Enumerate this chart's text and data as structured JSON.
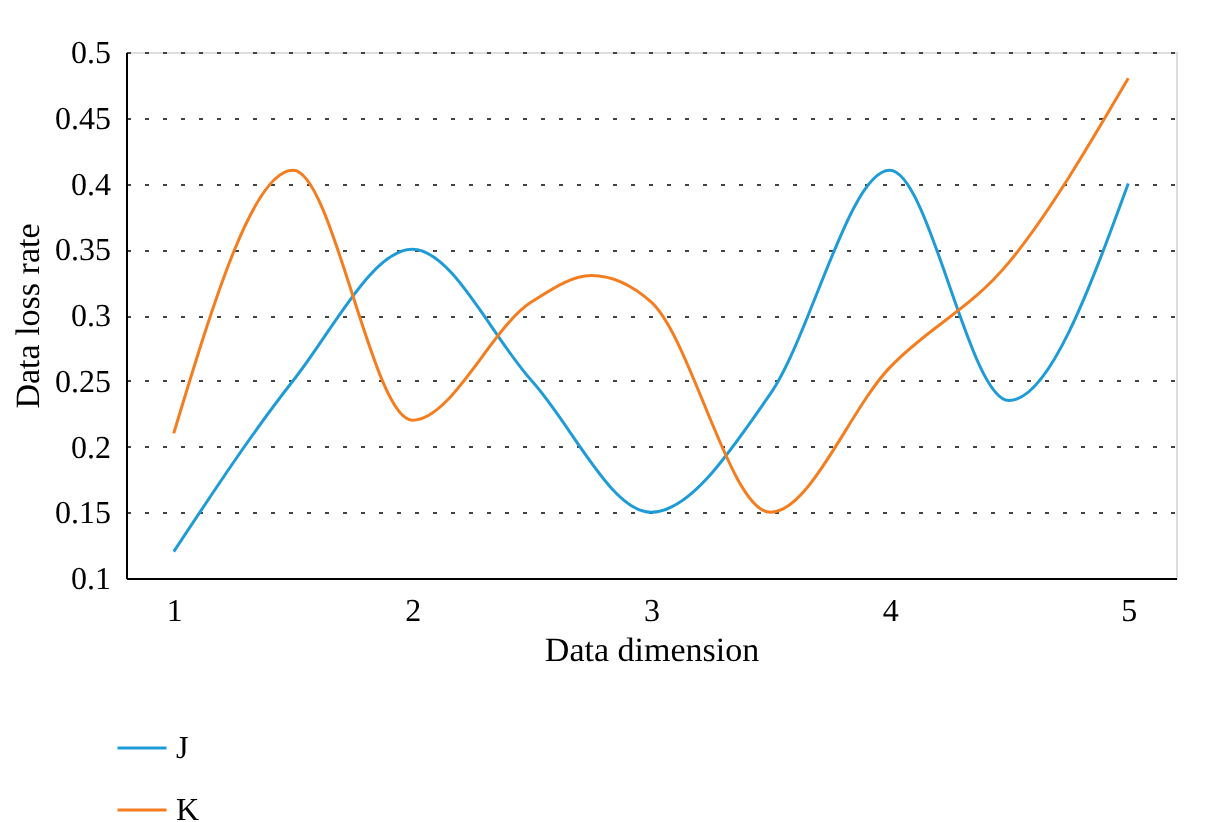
{
  "chart_data": {
    "type": "line",
    "xlabel": "Data dimension",
    "ylabel": "Data loss rate",
    "x": [
      1,
      1.5,
      2,
      2.5,
      3,
      3.5,
      4,
      4.5,
      5
    ],
    "series": [
      {
        "name": "J",
        "color": "#1f9bd7",
        "values": [
          0.12,
          0.25,
          0.35,
          0.25,
          0.15,
          0.24,
          0.41,
          0.235,
          0.4
        ]
      },
      {
        "name": "K",
        "color": "#f47d20",
        "x": [
          1,
          1.5,
          2,
          2.5,
          2.75,
          3,
          3.5,
          4,
          4.5,
          5
        ],
        "values": [
          0.21,
          0.41,
          0.22,
          0.31,
          0.33,
          0.31,
          0.15,
          0.26,
          0.34,
          0.48
        ]
      }
    ],
    "xlim": [
      0.8,
      5.2
    ],
    "xticks": [
      1,
      2,
      3,
      4,
      5
    ],
    "ylim": [
      0.1,
      0.5
    ],
    "yticks": [
      0.1,
      0.15,
      0.2,
      0.25,
      0.3,
      0.35,
      0.4,
      0.45,
      0.5
    ],
    "grid": "y",
    "legend": "bottom left",
    "marker": "none",
    "line_style": "solid"
  }
}
